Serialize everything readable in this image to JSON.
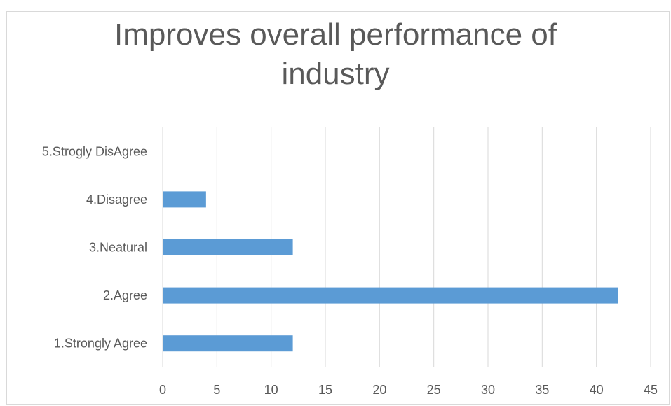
{
  "chart_data": {
    "type": "bar",
    "orientation": "horizontal",
    "title_lines": [
      "Improves overall performance of",
      "industry"
    ],
    "categories": [
      "1.Strongly Agree",
      "2.Agree",
      "3.Neatural",
      "4.Disagree",
      "5.Strogly DisAgree"
    ],
    "values": [
      12,
      42,
      12,
      4,
      0
    ],
    "xlim": [
      0,
      45
    ],
    "xticks": [
      0,
      5,
      10,
      15,
      20,
      25,
      30,
      35,
      40,
      45
    ],
    "grid": "vertical",
    "legend": "none",
    "bar_color": "#5b9bd5"
  }
}
